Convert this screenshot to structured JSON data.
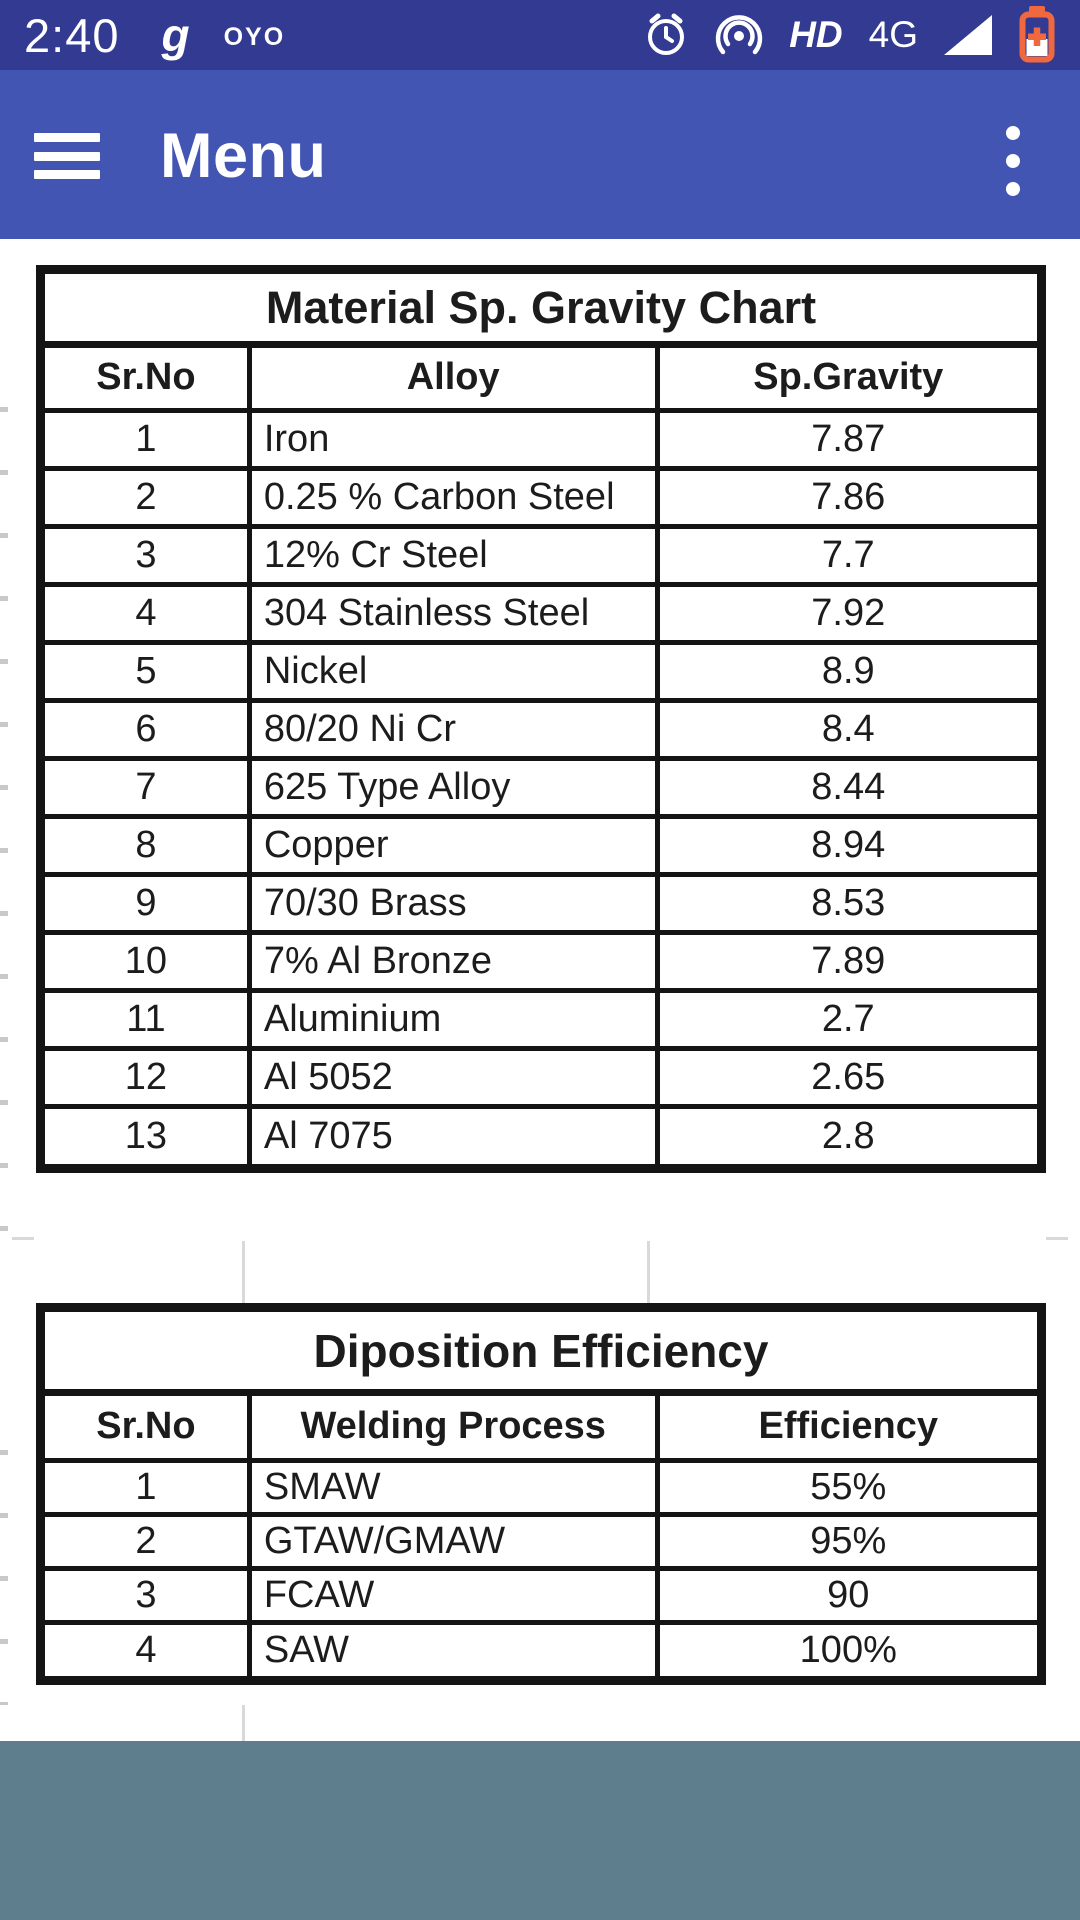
{
  "status_bar": {
    "time": "2:40",
    "glance_label": "g",
    "oyo_label": "OYO",
    "hd_label": "HD",
    "network_label": "4G",
    "right_icons": [
      "alarm-icon",
      "hotspot-icon",
      "hd-badge",
      "4g-label",
      "signal-icon",
      "battery-icon"
    ]
  },
  "app_bar": {
    "title": "Menu"
  },
  "tables": [
    {
      "title": "Material Sp. Gravity Chart",
      "headers": [
        "Sr.No",
        "Alloy",
        "Sp.Gravity"
      ],
      "rows": [
        [
          "1",
          "Iron",
          "7.87"
        ],
        [
          "2",
          "0.25 % Carbon Steel",
          "7.86"
        ],
        [
          "3",
          "12% Cr Steel",
          "7.7"
        ],
        [
          "4",
          "304 Stainless Steel",
          "7.92"
        ],
        [
          "5",
          "Nickel",
          "8.9"
        ],
        [
          "6",
          "80/20 Ni Cr",
          "8.4"
        ],
        [
          "7",
          "625 Type Alloy",
          "8.44"
        ],
        [
          "8",
          "Copper",
          "8.94"
        ],
        [
          "9",
          "70/30 Brass",
          "8.53"
        ],
        [
          "10",
          "7% Al Bronze",
          "7.89"
        ],
        [
          "11",
          "Aluminium",
          "2.7"
        ],
        [
          "12",
          "Al 5052",
          "2.65"
        ],
        [
          "13",
          "Al 7075",
          "2.8"
        ]
      ]
    },
    {
      "title": "Diposition Efficiency",
      "headers": [
        "Sr.No",
        "Welding Process",
        "Efficiency"
      ],
      "rows": [
        [
          "1",
          "SMAW",
          "55%"
        ],
        [
          "2",
          "GTAW/GMAW",
          "95%"
        ],
        [
          "3",
          "FCAW",
          "90"
        ],
        [
          "4",
          "SAW",
          "100%"
        ]
      ]
    }
  ],
  "colors": {
    "status_bar_bg": "#323a91",
    "app_bar_bg": "#4355b2",
    "footer_bg": "#5e7d8d",
    "table_border": "#141414",
    "text_dark": "#1c1c1c",
    "battery_orange": "#f0683f",
    "gridline": "#d9d9d9"
  }
}
